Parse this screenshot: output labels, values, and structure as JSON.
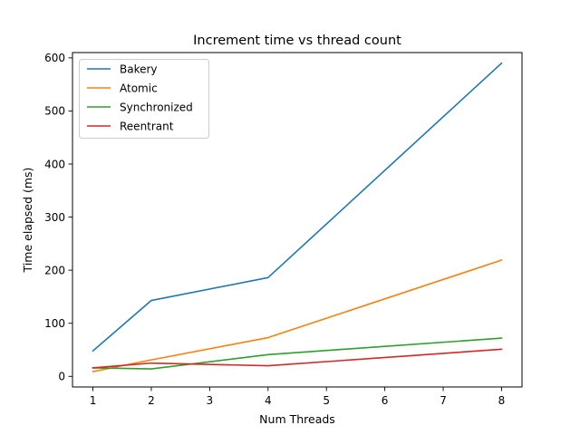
{
  "chart_data": {
    "type": "line",
    "title": "Increment time vs thread count",
    "xlabel": "Num Threads",
    "ylabel": "Time elapsed (ms)",
    "xlim": [
      0.65,
      8.35
    ],
    "ylim": [
      -20,
      610
    ],
    "xticks": [
      1,
      2,
      3,
      4,
      5,
      6,
      7,
      8
    ],
    "yticks": [
      0,
      100,
      200,
      300,
      400,
      500,
      600
    ],
    "grid": false,
    "legend_position": "top-left",
    "x": [
      1,
      2,
      4,
      8
    ],
    "series": [
      {
        "name": "Bakery",
        "color": "#1f77b4",
        "values": [
          48,
          143,
          186,
          590
        ]
      },
      {
        "name": "Atomic",
        "color": "#ff7f0e",
        "values": [
          9,
          31,
          73,
          219
        ]
      },
      {
        "name": "Synchronized",
        "color": "#2ca02c",
        "values": [
          16,
          14,
          41,
          72
        ]
      },
      {
        "name": "Reentrant",
        "color": "#d62728",
        "values": [
          16,
          25,
          20,
          51
        ]
      }
    ]
  }
}
